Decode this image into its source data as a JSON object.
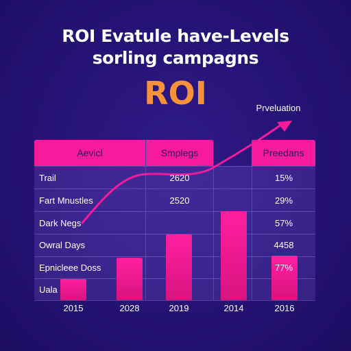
{
  "title_line1": "ROI Evatule have-Levels",
  "title_line2": "sorling campagns",
  "headline": "ROI",
  "trend_label": "Prveluation",
  "colors": {
    "background": "#251274",
    "accent_pink": "#f81a9c",
    "headline_orange": "#f7923a"
  },
  "table": {
    "headers": [
      "Aevicl",
      "Smplegs",
      "Preedans"
    ],
    "rows": [
      {
        "label": "Trail",
        "mid": "2620",
        "right": "15%"
      },
      {
        "label": "Fart Mnustles",
        "mid": "2520",
        "right": "29%"
      },
      {
        "label": "Dark Negs",
        "mid": "",
        "right": "57%"
      },
      {
        "label": "Owral Days",
        "mid": "",
        "right": "4458"
      },
      {
        "label": "Epnicleee Doss",
        "mid": "",
        "right": "77%"
      },
      {
        "label": "Uala",
        "mid": "",
        "right": ""
      }
    ]
  },
  "chart_data": {
    "type": "bar",
    "categories": [
      "2015",
      "2028",
      "2019",
      "2014",
      "2016"
    ],
    "values": [
      10,
      20,
      31,
      42,
      21
    ],
    "ylim": [
      0,
      42
    ],
    "grid": true,
    "trend_line": {
      "icon": "arrow-up-right-icon",
      "label": "Prveluation"
    }
  }
}
